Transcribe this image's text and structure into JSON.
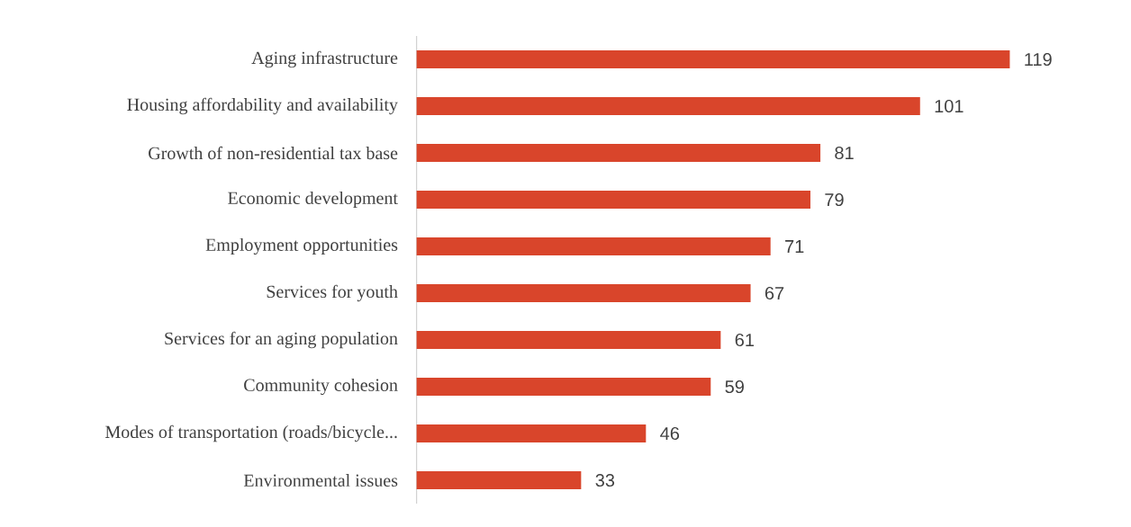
{
  "chart_data": {
    "type": "bar",
    "orientation": "horizontal",
    "categories": [
      "Aging infrastructure",
      "Housing affordability and availability",
      "Growth of non-residential tax base",
      "Economic development",
      "Employment opportunities",
      "Services for youth",
      "Services for an aging population",
      "Community cohesion",
      "Modes of transportation (roads/bicycle...",
      "Environmental issues"
    ],
    "values": [
      119,
      101,
      81,
      79,
      71,
      67,
      61,
      59,
      46,
      33
    ],
    "color": "#d9452b",
    "data_labels": true
  }
}
